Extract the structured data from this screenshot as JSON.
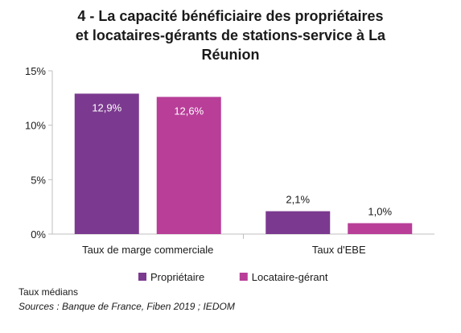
{
  "chart_data": {
    "type": "bar",
    "title_lines": [
      "4 - La capacité bénéficiaire des propriétaires",
      "et locataires-gérants de stations-service à La",
      "Réunion"
    ],
    "categories": [
      "Taux de marge commerciale",
      "Taux d'EBE"
    ],
    "series": [
      {
        "name": "Propriétaire",
        "color": "#7b3a8f",
        "values": [
          12.9,
          2.1
        ],
        "labels": [
          "12,9%",
          "2,1%"
        ]
      },
      {
        "name": "Locataire-gérant",
        "color": "#b83e98",
        "values": [
          12.6,
          1.0
        ],
        "labels": [
          "12,6%",
          "1,0%"
        ]
      }
    ],
    "y_ticks": [
      {
        "value": 0,
        "label": "0%"
      },
      {
        "value": 5,
        "label": "5%"
      },
      {
        "value": 10,
        "label": "10%"
      },
      {
        "value": 15,
        "label": "15%"
      }
    ],
    "ylim": [
      0,
      15
    ],
    "grid": false,
    "legend_position": "bottom"
  },
  "notes": {
    "median": "Taux médians",
    "source": "Sources : Banque de France, Fiben 2019 ; IEDOM"
  }
}
